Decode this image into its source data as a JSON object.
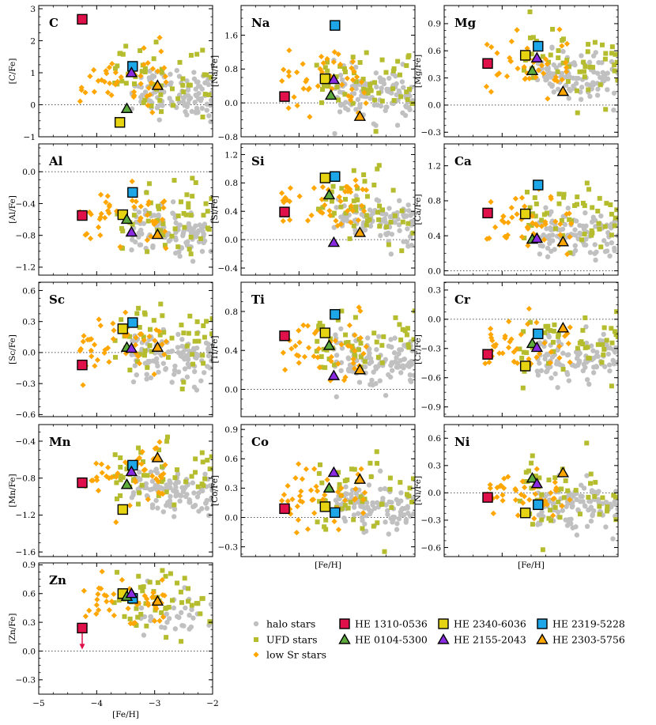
{
  "figure": {
    "xlabel": "[Fe/H]",
    "xlim": [
      -5,
      -2
    ],
    "xticks": [
      -5,
      -4,
      -3,
      -2
    ]
  },
  "legend": [
    {
      "label": "halo stars",
      "marker": "circle",
      "fill": "#c0c0c0",
      "edge": "none"
    },
    {
      "label": "UFD stars",
      "marker": "square-small",
      "fill": "#b5bd2e",
      "edge": "none"
    },
    {
      "label": "low Sr stars",
      "marker": "diamond",
      "fill": "#ffa600",
      "edge": "none"
    },
    {
      "label": "HE 1310-0536",
      "marker": "square",
      "fill": "#e0104a",
      "edge": "#000000"
    },
    {
      "label": "HE 0104-5300",
      "marker": "triangle",
      "fill": "#5cab3c",
      "edge": "#000000"
    },
    {
      "label": "HE 2340-6036",
      "marker": "square",
      "fill": "#e6d413",
      "edge": "#000000"
    },
    {
      "label": "HE 2155-2043",
      "marker": "triangle",
      "fill": "#8a2be2",
      "edge": "#000000"
    },
    {
      "label": "HE 2319-5228",
      "marker": "square",
      "fill": "#1ea7e8",
      "edge": "#000000"
    },
    {
      "label": "HE 2303-5756",
      "marker": "triangle",
      "fill": "#ffa600",
      "edge": "#000000"
    }
  ],
  "chart_data": [
    {
      "type": "scatter",
      "element": "C",
      "ylabel": "[C/Fe]",
      "ylim": [
        -1,
        3.1
      ],
      "yticks": [
        -1,
        0,
        1,
        2,
        3
      ],
      "program": [
        {
          "star": "HE 1310-0536",
          "x": -4.25,
          "y": 2.67
        },
        {
          "star": "HE 2340-6036",
          "x": -3.6,
          "y": -0.55
        },
        {
          "star": "HE 2319-5228",
          "x": -3.38,
          "y": 1.2
        },
        {
          "star": "HE 0104-5300",
          "x": -3.48,
          "y": -0.12
        },
        {
          "star": "HE 2155-2043",
          "x": -3.4,
          "y": 1.0
        },
        {
          "star": "HE 2303-5756",
          "x": -2.95,
          "y": 0.6
        }
      ]
    },
    {
      "type": "scatter",
      "element": "Na",
      "ylabel": "[Na/Fe]",
      "ylim": [
        -0.8,
        2.3
      ],
      "yticks": [
        -0.8,
        0.0,
        0.8,
        1.6
      ],
      "program": [
        {
          "star": "HE 1310-0536",
          "x": -4.25,
          "y": 0.15
        },
        {
          "star": "HE 2340-6036",
          "x": -3.55,
          "y": 0.57
        },
        {
          "star": "HE 2319-5228",
          "x": -3.38,
          "y": 1.83
        },
        {
          "star": "HE 0104-5300",
          "x": -3.45,
          "y": 0.18
        },
        {
          "star": "HE 2155-2043",
          "x": -3.4,
          "y": 0.55
        },
        {
          "star": "HE 2303-5756",
          "x": -2.95,
          "y": -0.32
        }
      ]
    },
    {
      "type": "scatter",
      "element": "Mg",
      "ylabel": "[Mg/Fe]",
      "ylim": [
        -0.35,
        1.1
      ],
      "yticks": [
        -0.3,
        0.0,
        0.3,
        0.6,
        0.9
      ],
      "program": [
        {
          "star": "HE 1310-0536",
          "x": -4.25,
          "y": 0.46
        },
        {
          "star": "HE 2340-6036",
          "x": -3.6,
          "y": 0.55
        },
        {
          "star": "HE 2319-5228",
          "x": -3.38,
          "y": 0.65
        },
        {
          "star": "HE 0104-5300",
          "x": -3.48,
          "y": 0.38
        },
        {
          "star": "HE 2155-2043",
          "x": -3.4,
          "y": 0.52
        },
        {
          "star": "HE 2303-5756",
          "x": -2.95,
          "y": 0.15
        }
      ]
    },
    {
      "type": "scatter",
      "element": "Al",
      "ylabel": "[Al/Fe]",
      "ylim": [
        -1.3,
        0.35
      ],
      "yticks": [
        -1.2,
        -0.8,
        -0.4,
        0.0
      ],
      "program": [
        {
          "star": "HE 1310-0536",
          "x": -4.25,
          "y": -0.55
        },
        {
          "star": "HE 2340-6036",
          "x": -3.55,
          "y": -0.54
        },
        {
          "star": "HE 2319-5228",
          "x": -3.38,
          "y": -0.26
        },
        {
          "star": "HE 0104-5300",
          "x": -3.48,
          "y": -0.6
        },
        {
          "star": "HE 2155-2043",
          "x": -3.4,
          "y": -0.76
        },
        {
          "star": "HE 2303-5756",
          "x": -2.95,
          "y": -0.79
        }
      ]
    },
    {
      "type": "scatter",
      "element": "Si",
      "ylabel": "[Si/Fe]",
      "ylim": [
        -0.5,
        1.35
      ],
      "yticks": [
        -0.4,
        0.0,
        0.4,
        0.8,
        1.2
      ],
      "program": [
        {
          "star": "HE 1310-0536",
          "x": -4.25,
          "y": 0.39
        },
        {
          "star": "HE 2340-6036",
          "x": -3.55,
          "y": 0.87
        },
        {
          "star": "HE 2319-5228",
          "x": -3.38,
          "y": 0.89
        },
        {
          "star": "HE 0104-5300",
          "x": -3.48,
          "y": 0.63
        },
        {
          "star": "HE 2155-2043",
          "x": -3.4,
          "y": -0.04
        },
        {
          "star": "HE 2303-5756",
          "x": -2.95,
          "y": 0.1
        }
      ]
    },
    {
      "type": "scatter",
      "element": "Ca",
      "ylabel": "[Ca/Fe]",
      "ylim": [
        -0.05,
        1.45
      ],
      "yticks": [
        0.0,
        0.4,
        0.8,
        1.2
      ],
      "program": [
        {
          "star": "HE 1310-0536",
          "x": -4.25,
          "y": 0.66
        },
        {
          "star": "HE 2340-6036",
          "x": -3.6,
          "y": 0.65
        },
        {
          "star": "HE 2319-5228",
          "x": -3.38,
          "y": 0.98
        },
        {
          "star": "HE 0104-5300",
          "x": -3.48,
          "y": 0.36
        },
        {
          "star": "HE 2155-2043",
          "x": -3.4,
          "y": 0.37
        },
        {
          "star": "HE 2303-5756",
          "x": -2.95,
          "y": 0.33
        }
      ]
    },
    {
      "type": "scatter",
      "element": "Sc",
      "ylabel": "[Sc/Fe]",
      "ylim": [
        -0.62,
        0.68
      ],
      "yticks": [
        -0.6,
        -0.3,
        0.0,
        0.3,
        0.6
      ],
      "program": [
        {
          "star": "HE 1310-0536",
          "x": -4.25,
          "y": -0.12
        },
        {
          "star": "HE 2340-6036",
          "x": -3.55,
          "y": 0.23
        },
        {
          "star": "HE 2319-5228",
          "x": -3.38,
          "y": 0.29
        },
        {
          "star": "HE 0104-5300",
          "x": -3.48,
          "y": 0.05
        },
        {
          "star": "HE 2155-2043",
          "x": -3.4,
          "y": 0.04
        },
        {
          "star": "HE 2303-5756",
          "x": -2.95,
          "y": 0.05
        }
      ]
    },
    {
      "type": "scatter",
      "element": "Ti",
      "ylabel": "[Ti/Fe]",
      "ylim": [
        -0.28,
        1.1
      ],
      "yticks": [
        0.0,
        0.4,
        0.8
      ],
      "program": [
        {
          "star": "HE 1310-0536",
          "x": -4.25,
          "y": 0.55
        },
        {
          "star": "HE 2340-6036",
          "x": -3.55,
          "y": 0.58
        },
        {
          "star": "HE 2319-5228",
          "x": -3.38,
          "y": 0.77
        },
        {
          "star": "HE 0104-5300",
          "x": -3.48,
          "y": 0.45
        },
        {
          "star": "HE 2155-2043",
          "x": -3.4,
          "y": 0.14
        },
        {
          "star": "HE 2303-5756",
          "x": -2.95,
          "y": 0.2
        }
      ]
    },
    {
      "type": "scatter",
      "element": "Cr",
      "ylabel": "[Cr/Fe]",
      "ylim": [
        -1.0,
        0.38
      ],
      "yticks": [
        -0.9,
        -0.6,
        -0.3,
        0.0,
        0.3
      ],
      "program": [
        {
          "star": "HE 1310-0536",
          "x": -4.25,
          "y": -0.36
        },
        {
          "star": "HE 2340-6036",
          "x": -3.6,
          "y": -0.48
        },
        {
          "star": "HE 2319-5228",
          "x": -3.38,
          "y": -0.15
        },
        {
          "star": "HE 0104-5300",
          "x": -3.48,
          "y": -0.25
        },
        {
          "star": "HE 2155-2043",
          "x": -3.4,
          "y": -0.29
        },
        {
          "star": "HE 2303-5756",
          "x": -2.95,
          "y": -0.09
        }
      ]
    },
    {
      "type": "scatter",
      "element": "Mn",
      "ylabel": "[Mn/Fe]",
      "ylim": [
        -1.65,
        -0.22
      ],
      "yticks": [
        -1.6,
        -1.2,
        -0.8,
        -0.4
      ],
      "program": [
        {
          "star": "HE 1310-0536",
          "x": -4.25,
          "y": -0.85
        },
        {
          "star": "HE 2340-6036",
          "x": -3.55,
          "y": -1.14
        },
        {
          "star": "HE 2319-5228",
          "x": -3.38,
          "y": -0.66
        },
        {
          "star": "HE 0104-5300",
          "x": -3.48,
          "y": -0.87
        },
        {
          "star": "HE 2155-2043",
          "x": -3.4,
          "y": -0.73
        },
        {
          "star": "HE 2303-5756",
          "x": -2.95,
          "y": -0.58
        }
      ]
    },
    {
      "type": "scatter",
      "element": "Co",
      "ylabel": "[Co/Fe]",
      "ylim": [
        -0.4,
        0.95
      ],
      "yticks": [
        -0.3,
        0.0,
        0.3,
        0.6,
        0.9
      ],
      "program": [
        {
          "star": "HE 1310-0536",
          "x": -4.25,
          "y": 0.09
        },
        {
          "star": "HE 2340-6036",
          "x": -3.55,
          "y": 0.11
        },
        {
          "star": "HE 2319-5228",
          "x": -3.38,
          "y": 0.05
        },
        {
          "star": "HE 0104-5300",
          "x": -3.48,
          "y": 0.3
        },
        {
          "star": "HE 2155-2043",
          "x": -3.4,
          "y": 0.46
        },
        {
          "star": "HE 2303-5756",
          "x": -2.95,
          "y": 0.39
        }
      ]
    },
    {
      "type": "scatter",
      "element": "Ni",
      "ylabel": "[Ni/Fe]",
      "ylim": [
        -0.7,
        0.75
      ],
      "yticks": [
        -0.6,
        -0.3,
        0.0,
        0.3,
        0.6
      ],
      "program": [
        {
          "star": "HE 1310-0536",
          "x": -4.25,
          "y": -0.05
        },
        {
          "star": "HE 2340-6036",
          "x": -3.6,
          "y": -0.22
        },
        {
          "star": "HE 2319-5228",
          "x": -3.38,
          "y": -0.13
        },
        {
          "star": "HE 0104-5300",
          "x": -3.48,
          "y": 0.16
        },
        {
          "star": "HE 2155-2043",
          "x": -3.4,
          "y": 0.1
        },
        {
          "star": "HE 2303-5756",
          "x": -2.95,
          "y": 0.22
        }
      ]
    },
    {
      "type": "scatter",
      "element": "Zn",
      "ylabel": "[Zn/Fe]",
      "ylim": [
        -0.45,
        0.92
      ],
      "yticks": [
        -0.3,
        0.0,
        0.3,
        0.6,
        0.9
      ],
      "upper_limit_star": "HE 1310-0536",
      "program": [
        {
          "star": "HE 1310-0536",
          "x": -4.25,
          "y": 0.24
        },
        {
          "star": "HE 2340-6036",
          "x": -3.55,
          "y": 0.6
        },
        {
          "star": "HE 2319-5228",
          "x": -3.38,
          "y": 0.55
        },
        {
          "star": "HE 0104-5300",
          "x": -3.48,
          "y": 0.57
        },
        {
          "star": "HE 2155-2043",
          "x": -3.4,
          "y": 0.6
        },
        {
          "star": "HE 2303-5756",
          "x": -2.95,
          "y": 0.52
        }
      ]
    }
  ]
}
